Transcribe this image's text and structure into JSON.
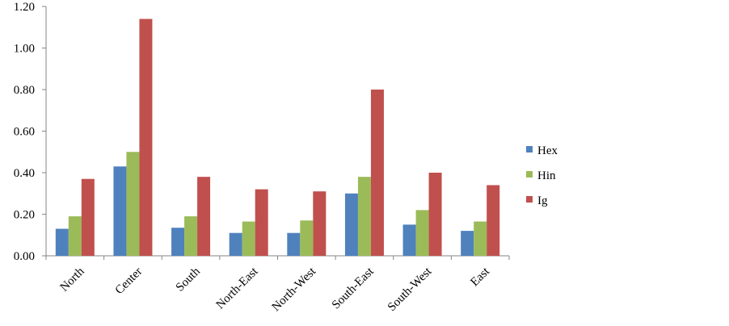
{
  "chart_data": {
    "type": "bar",
    "categories": [
      "North",
      "Center",
      "South",
      "North-East",
      "North-West",
      "South-East",
      "South-West",
      "East"
    ],
    "series": [
      {
        "name": "Hex",
        "color": "#4F81BD",
        "values": [
          0.13,
          0.43,
          0.135,
          0.11,
          0.11,
          0.3,
          0.15,
          0.12
        ]
      },
      {
        "name": "Hin",
        "color": "#9BBB59",
        "values": [
          0.19,
          0.5,
          0.19,
          0.165,
          0.17,
          0.38,
          0.22,
          0.165
        ]
      },
      {
        "name": "Ig",
        "color": "#C0504D",
        "values": [
          0.37,
          1.14,
          0.38,
          0.32,
          0.31,
          0.8,
          0.4,
          0.34
        ]
      }
    ],
    "y_ticks": [
      "0.00",
      "0.20",
      "0.40",
      "0.60",
      "0.80",
      "1.00",
      "1.20"
    ],
    "ylim": [
      0,
      1.2
    ],
    "legend_position": "right",
    "grid": false
  }
}
